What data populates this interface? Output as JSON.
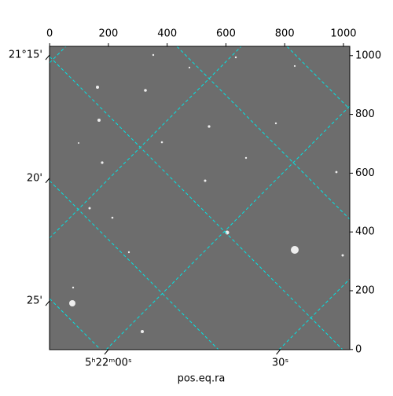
{
  "chart_data": {
    "type": "image",
    "x_label": "pos.eq.ra",
    "xlim": [
      -0.5,
      1021.5
    ],
    "ylim": [
      -0.5,
      1031.5
    ],
    "xticks": [
      0,
      200,
      400,
      600,
      800,
      1000
    ],
    "yticks": [
      0,
      200,
      400,
      600,
      800,
      1000
    ],
    "ra_ticks": [
      {
        "value": 200,
        "label": "5ʰ22ᵐ00ˢ"
      },
      {
        "value": 785,
        "label": "30ˢ"
      }
    ],
    "dec_ticks": [
      {
        "value": 1002,
        "label": "21°15'"
      },
      {
        "value": 583,
        "label": "20'"
      },
      {
        "value": 165,
        "label": "25'"
      }
    ],
    "grid_color": "#00e5e5"
  }
}
